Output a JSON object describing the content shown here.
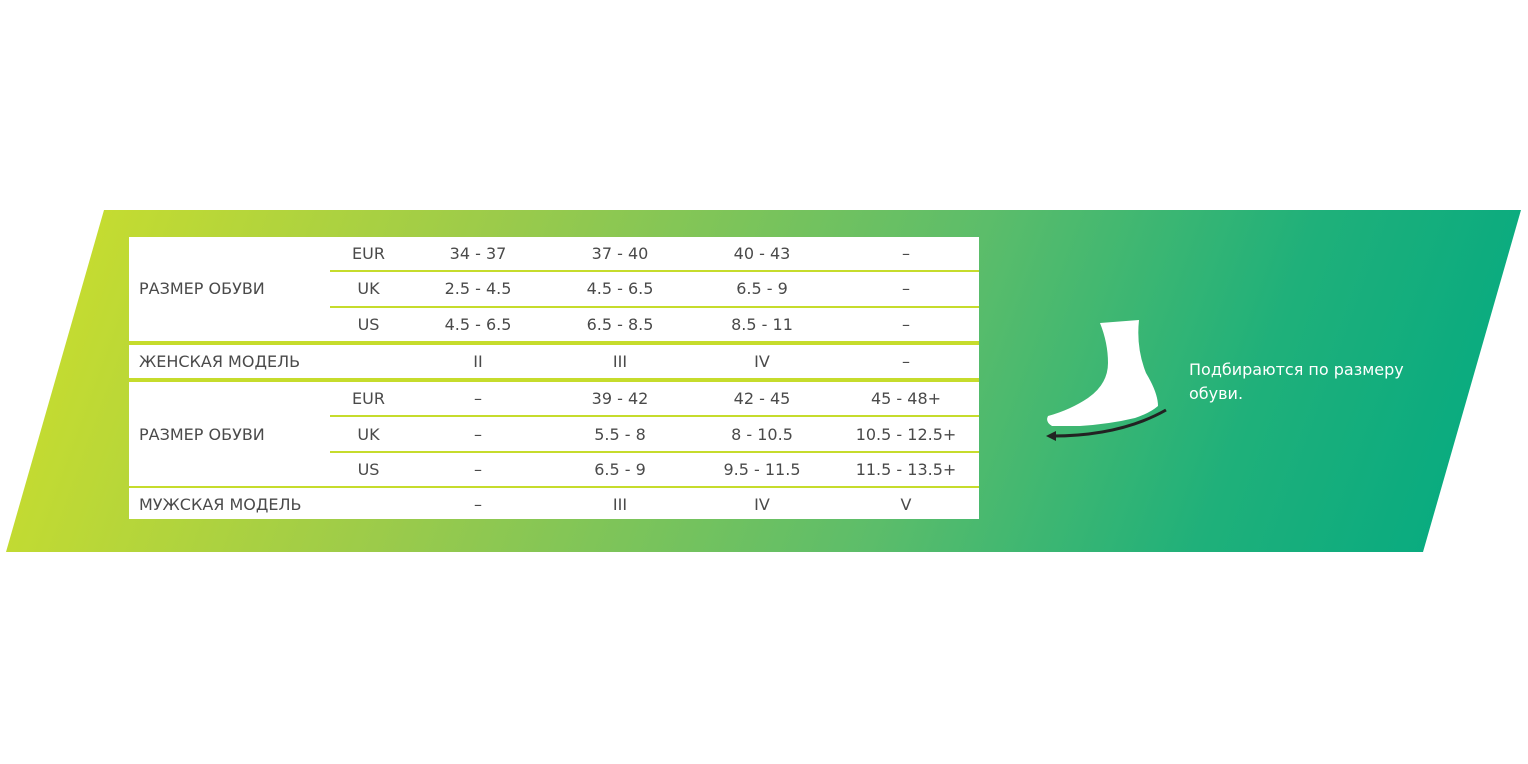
{
  "colors": {
    "gradient_start": "#cfe02a",
    "gradient_end": "#00a982",
    "divider": "#c6dc2c",
    "text": "#4a4a4a"
  },
  "women": {
    "size_label": "РАЗМЕР ОБУВИ",
    "rows": [
      {
        "unit": "EUR",
        "values": [
          "34 - 37",
          "37 - 40",
          "40 - 43",
          "–"
        ]
      },
      {
        "unit": "UK",
        "values": [
          "2.5 - 4.5",
          "4.5 - 6.5",
          "6.5 - 9",
          "–"
        ]
      },
      {
        "unit": "US",
        "values": [
          "4.5 - 6.5",
          "6.5 - 8.5",
          "8.5 - 11",
          "–"
        ]
      }
    ],
    "model_label": "ЖЕНСКАЯ МОДЕЛЬ",
    "model_values": [
      "II",
      "III",
      "IV",
      "–"
    ]
  },
  "men": {
    "size_label": "РАЗМЕР ОБУВИ",
    "rows": [
      {
        "unit": "EUR",
        "values": [
          "–",
          "39 - 42",
          "42 - 45",
          "45 - 48+"
        ]
      },
      {
        "unit": "UK",
        "values": [
          "–",
          "5.5 - 8",
          "8 - 10.5",
          "10.5 - 12.5+"
        ]
      },
      {
        "unit": "US",
        "values": [
          "–",
          "6.5 - 9",
          "9.5 - 11.5",
          "11.5 - 13.5+"
        ]
      }
    ],
    "model_label": "МУЖСКАЯ МОДЕЛЬ",
    "model_values": [
      "–",
      "III",
      "IV",
      "V"
    ]
  },
  "note": "Подбираются по размеру обуви.",
  "icon": "foot-measure-icon"
}
